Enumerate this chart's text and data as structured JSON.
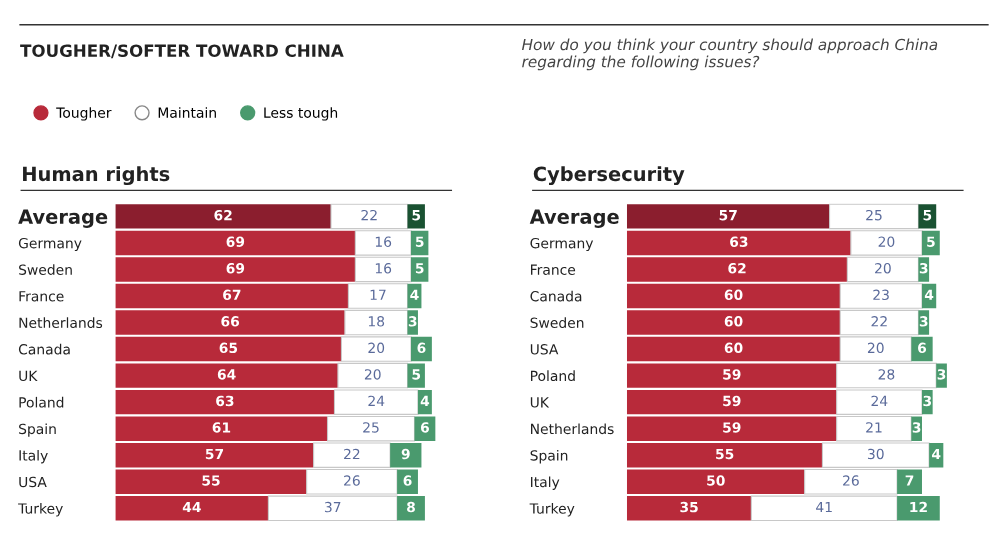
{
  "chart_data": [
    {
      "type": "bar",
      "orientation": "horizontal",
      "stacked": true,
      "title": "Human rights",
      "annotations": [
        "TOUGHER/SOFTER TOWARD CHINA",
        "How do you think your country should approach China regarding the following issues?"
      ],
      "legend": "top left",
      "data_labels": true,
      "tick_labels": "y",
      "categories": [
        "Average",
        "Germany",
        "Sweden",
        "France",
        "Netherlands",
        "Canada",
        "UK",
        "Poland",
        "Spain",
        "Italy",
        "USA",
        "Turkey"
      ],
      "series": [
        {
          "name": "Tougher",
          "color": "#b82a3a",
          "colors": [
            "#8b1e2e",
            "#b82a3a",
            "#b82a3a",
            "#b82a3a",
            "#b82a3a",
            "#b82a3a",
            "#b82a3a",
            "#b82a3a",
            "#b82a3a",
            "#b82a3a",
            "#b82a3a",
            "#b82a3a"
          ],
          "values": [
            62,
            69,
            69,
            67,
            66,
            65,
            64,
            63,
            61,
            57,
            55,
            44
          ]
        },
        {
          "name": "Maintain",
          "color": "#ffffff",
          "values": [
            22,
            16,
            16,
            17,
            18,
            20,
            20,
            24,
            25,
            22,
            26,
            37
          ]
        },
        {
          "name": "Less tough",
          "color": "#4a9a6e",
          "colors": [
            "#1a5232",
            "#4a9a6e",
            "#4a9a6e",
            "#4a9a6e",
            "#4a9a6e",
            "#4a9a6e",
            "#4a9a6e",
            "#4a9a6e",
            "#4a9a6e",
            "#4a9a6e",
            "#4a9a6e",
            "#4a9a6e"
          ],
          "values": [
            5,
            5,
            5,
            4,
            3,
            6,
            5,
            4,
            6,
            9,
            6,
            8
          ]
        }
      ]
    },
    {
      "type": "bar",
      "orientation": "horizontal",
      "stacked": true,
      "title": "Cybersecurity",
      "data_labels": true,
      "tick_labels": "y",
      "categories": [
        "Average",
        "Germany",
        "France",
        "Canada",
        "Sweden",
        "USA",
        "Poland",
        "UK",
        "Netherlands",
        "Spain",
        "Italy",
        "Turkey"
      ],
      "series": [
        {
          "colors": [
            "#8b1e2e",
            "#b82a3a",
            "#b82a3a",
            "#b82a3a",
            "#b82a3a",
            "#b82a3a",
            "#b82a3a",
            "#b82a3a",
            "#b82a3a",
            "#b82a3a",
            "#b82a3a",
            "#b82a3a"
          ],
          "values": [
            57,
            63,
            62,
            60,
            60,
            60,
            59,
            59,
            59,
            55,
            50,
            35
          ]
        },
        {
          "color": "#ffffff",
          "values": [
            25,
            20,
            20,
            23,
            22,
            20,
            28,
            24,
            21,
            30,
            26,
            41
          ]
        },
        {
          "colors": [
            "#1a5232",
            "#4a9a6e",
            "#4a9a6e",
            "#4a9a6e",
            "#4a9a6e",
            "#4a9a6e",
            "#4a9a6e",
            "#4a9a6e",
            "#4a9a6e",
            "#4a9a6e",
            "#4a9a6e",
            "#4a9a6e"
          ],
          "values": [
            5,
            5,
            3,
            4,
            3,
            6,
            3,
            3,
            3,
            4,
            7,
            12
          ]
        }
      ]
    }
  ]
}
